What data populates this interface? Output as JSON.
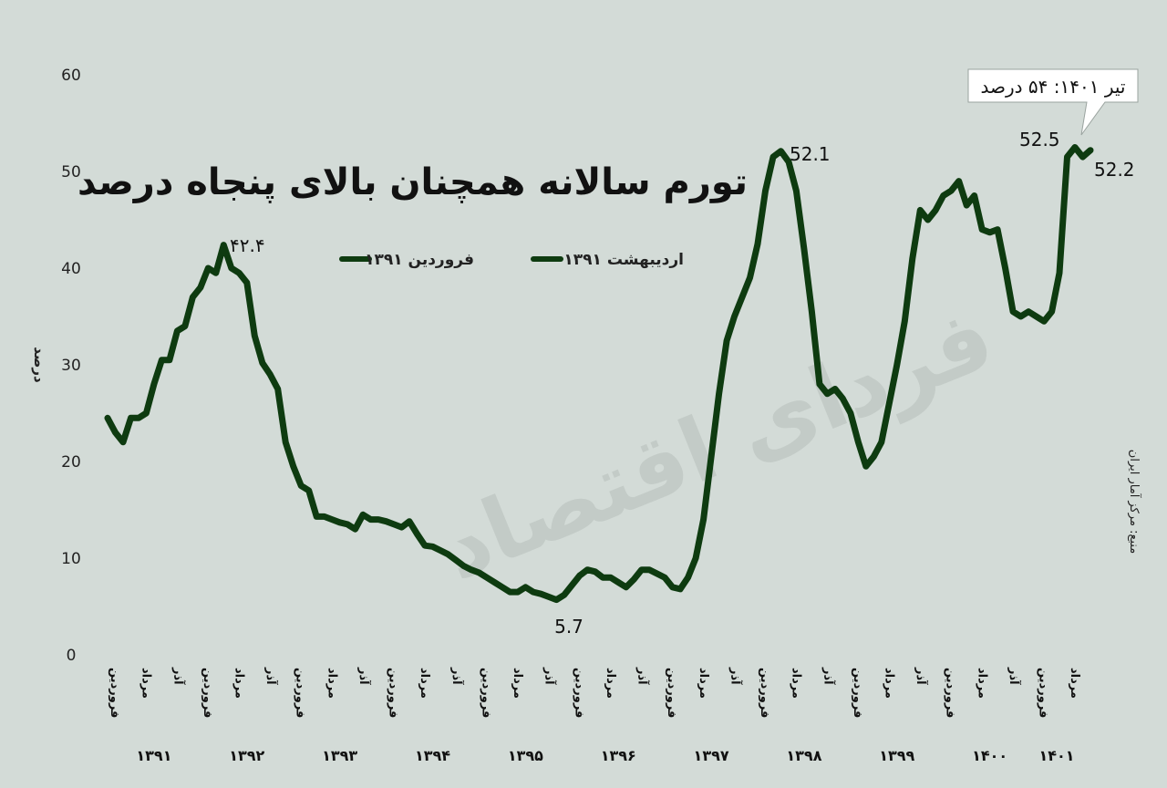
{
  "chart_data": {
    "type": "line",
    "title": "تورم سالانه همچنان بالای پنجاه درصد",
    "ylabel": "درصد",
    "ylim": [
      0,
      60
    ],
    "yticks": [
      "0",
      "10",
      "20",
      "30",
      "40",
      "50",
      "60"
    ],
    "grid": false,
    "legend_position": "top-center",
    "line_color": "#0e3b10",
    "legend": [
      {
        "label": "۱۳۹۱ اردیبهشت"
      },
      {
        "label": "۱۳۹۱ فروردین"
      }
    ],
    "month_ticks": [
      "فروردین",
      "مرداد",
      "آذر"
    ],
    "years": [
      "۱۳۹۱",
      "۱۳۹۲",
      "۱۳۹۳",
      "۱۳۹۴",
      "۱۳۹۵",
      "۱۳۹۶",
      "۱۳۹۷",
      "۱۳۹۸",
      "۱۳۹۹",
      "۱۴۰۰",
      "۱۴۰۱"
    ],
    "last_year_month_ticks": [
      "فروردین",
      "مرداد"
    ],
    "values": [
      24.5,
      23,
      22,
      24.5,
      24.5,
      25,
      28,
      30.5,
      30.5,
      33.5,
      34,
      37,
      38,
      40,
      39.5,
      42.4,
      40,
      39.5,
      38.5,
      33,
      30.2,
      29,
      27.5,
      22,
      19.5,
      17.5,
      17,
      14.3,
      14.3,
      14,
      13.7,
      13.5,
      13,
      14.5,
      14,
      14,
      13.8,
      13.5,
      13.2,
      13.8,
      12.5,
      11.3,
      11.2,
      10.8,
      10.4,
      9.8,
      9.2,
      8.8,
      8.5,
      8,
      7.5,
      7,
      6.5,
      6.5,
      7,
      6.5,
      6.3,
      6,
      5.7,
      6.2,
      7.2,
      8.2,
      8.8,
      8.6,
      8,
      8,
      7.5,
      7,
      7.8,
      8.8,
      8.8,
      8.4,
      8,
      7,
      6.8,
      8,
      10,
      14,
      20.5,
      27,
      32.5,
      35,
      37,
      39,
      42.5,
      48,
      51.5,
      52.1,
      51,
      48,
      42,
      35.5,
      28,
      27,
      27.5,
      26.5,
      25,
      22,
      19.5,
      20.5,
      22,
      26,
      30,
      34.5,
      41,
      46,
      45,
      46,
      47.5,
      48,
      49,
      46.5,
      47.5,
      44,
      43.7,
      44,
      40,
      35.5,
      35,
      35.5,
      35,
      34.5,
      35.5,
      39.5,
      51.5,
      52.5,
      51.5,
      52.2
    ],
    "annotations": {
      "peak_1392": "۴۲.۴",
      "trough_1395": "5.7",
      "peak_1398": "52.1",
      "val_1401_a": "52.5",
      "val_1401_last": "52.2",
      "callout": "تیر ۱۴۰۱: ۵۴ درصد"
    },
    "source": "منبع: مرکز آمار ایران",
    "watermark": "فردای اقتصاد"
  }
}
